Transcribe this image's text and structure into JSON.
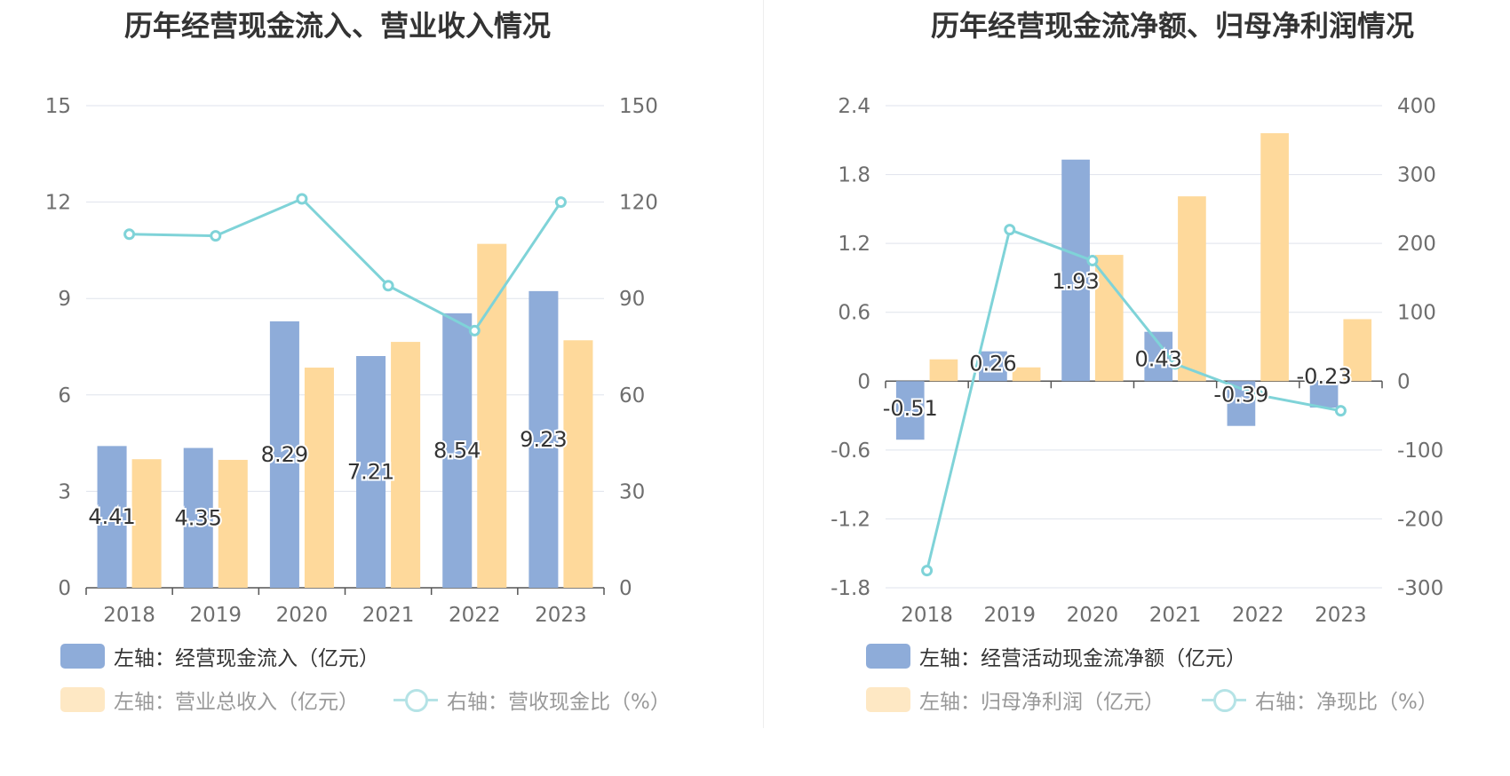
{
  "colors": {
    "bar_primary": "#8eacd9",
    "bar_secondary": "#fed99b",
    "line": "#7fd3d8",
    "grid": "#dfe3ec",
    "axis_text": "#666666",
    "label_text": "#333333"
  },
  "chart_data": [
    {
      "type": "bar",
      "title": "历年经营现金流入、营业收入情况",
      "categories": [
        "2018",
        "2019",
        "2020",
        "2021",
        "2022",
        "2023"
      ],
      "left_axis": {
        "ticks": [
          "0",
          "3",
          "6",
          "9",
          "12",
          "15"
        ],
        "ylim": [
          0,
          15
        ]
      },
      "right_axis": {
        "ticks": [
          "0",
          "30",
          "60",
          "90",
          "120",
          "150"
        ],
        "ylim": [
          0,
          150
        ]
      },
      "series": [
        {
          "name": "左轴：经营现金流入（亿元）",
          "kind": "bar",
          "axis": "left",
          "values": [
            4.41,
            4.35,
            8.29,
            7.21,
            8.54,
            9.23
          ],
          "labels": [
            "4.41",
            "4.35",
            "8.29",
            "7.21",
            "8.54",
            "9.23"
          ]
        },
        {
          "name": "左轴：营业总收入（亿元）",
          "kind": "bar",
          "axis": "left",
          "values": [
            4.0,
            3.98,
            6.85,
            7.65,
            10.7,
            7.7
          ]
        },
        {
          "name": "右轴：营收现金比（%）",
          "kind": "line",
          "axis": "right",
          "values": [
            110,
            109.5,
            121,
            94,
            80,
            120
          ]
        }
      ],
      "grid": true,
      "legend_position": "bottom"
    },
    {
      "type": "bar",
      "title": "历年经营现金流净额、归母净利润情况",
      "categories": [
        "2018",
        "2019",
        "2020",
        "2021",
        "2022",
        "2023"
      ],
      "left_axis": {
        "ticks": [
          "-1.8",
          "-1.2",
          "-0.6",
          "0",
          "0.6",
          "1.2",
          "1.8",
          "2.4"
        ],
        "ylim": [
          -1.8,
          2.4
        ]
      },
      "right_axis": {
        "ticks": [
          "-300",
          "-200",
          "-100",
          "0",
          "100",
          "200",
          "300",
          "400"
        ],
        "ylim": [
          -300,
          400
        ]
      },
      "series": [
        {
          "name": "左轴：经营活动现金流净额（亿元）",
          "kind": "bar",
          "axis": "left",
          "values": [
            -0.51,
            0.26,
            1.93,
            0.43,
            -0.39,
            -0.23
          ],
          "labels": [
            "-0.51",
            "0.26",
            "1.93",
            "0.43",
            "-0.39",
            "-0.23"
          ]
        },
        {
          "name": "左轴：归母净利润（亿元）",
          "kind": "bar",
          "axis": "left",
          "values": [
            0.19,
            0.12,
            1.1,
            1.61,
            2.16,
            0.54
          ]
        },
        {
          "name": "右轴：净现比（%）",
          "kind": "line",
          "axis": "right",
          "values": [
            -275,
            220,
            175,
            25,
            -20,
            -43
          ]
        }
      ],
      "grid": true,
      "legend_position": "bottom"
    }
  ]
}
